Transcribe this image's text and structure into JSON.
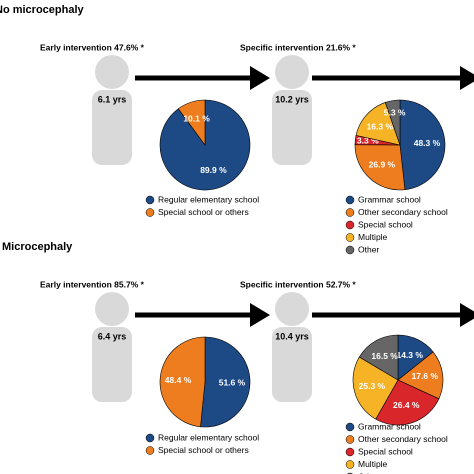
{
  "sections": [
    {
      "title": "No microcephaly",
      "early": {
        "label": "Early intervention 47.6% *",
        "age": "6.1 yrs"
      },
      "specific": {
        "label": "Specific intervention 21.6% *",
        "age": "10.2 yrs"
      }
    },
    {
      "title": "Microcephaly",
      "early": {
        "label": "Early intervention 85.7% *",
        "age": "6.4 yrs"
      },
      "specific": {
        "label": "Specific intervention 52.7% *",
        "age": "10.4 yrs"
      }
    }
  ],
  "chart_data": [
    {
      "type": "pie",
      "categories": [
        "Regular elementary school",
        "Special school or others"
      ],
      "values": [
        89.9,
        10.1
      ],
      "value_labels": [
        "89.9 %",
        "10.1 %"
      ],
      "colors": [
        "#1d4a84",
        "#ee7d1f"
      ]
    },
    {
      "type": "pie",
      "categories": [
        "Grammar school",
        "Other secondary school",
        "Special school",
        "Multiple",
        "Other"
      ],
      "values": [
        48.3,
        26.9,
        3.3,
        16.3,
        5.3
      ],
      "value_labels": [
        "48.3 %",
        "26.9 %",
        "3.3 %",
        "16.3 %",
        "5.3 %"
      ],
      "colors": [
        "#1d4a84",
        "#ee7d1f",
        "#d8262b",
        "#f5b325",
        "#666666"
      ]
    },
    {
      "type": "pie",
      "categories": [
        "Regular elementary school",
        "Special school or others"
      ],
      "values": [
        51.6,
        48.4
      ],
      "value_labels": [
        "51.6 %",
        "48.4 %"
      ],
      "colors": [
        "#1d4a84",
        "#ee7d1f"
      ]
    },
    {
      "type": "pie",
      "categories": [
        "Grammar school",
        "Other secondary school",
        "Special school",
        "Multiple",
        "Other"
      ],
      "values": [
        14.3,
        17.6,
        26.4,
        25.3,
        16.5
      ],
      "value_labels": [
        "14.3 %",
        "17.6 %",
        "26.4 %",
        "25.3 %",
        "16.5 %"
      ],
      "colors": [
        "#1d4a84",
        "#ee7d1f",
        "#d8262b",
        "#f5b325",
        "#666666"
      ]
    }
  ]
}
